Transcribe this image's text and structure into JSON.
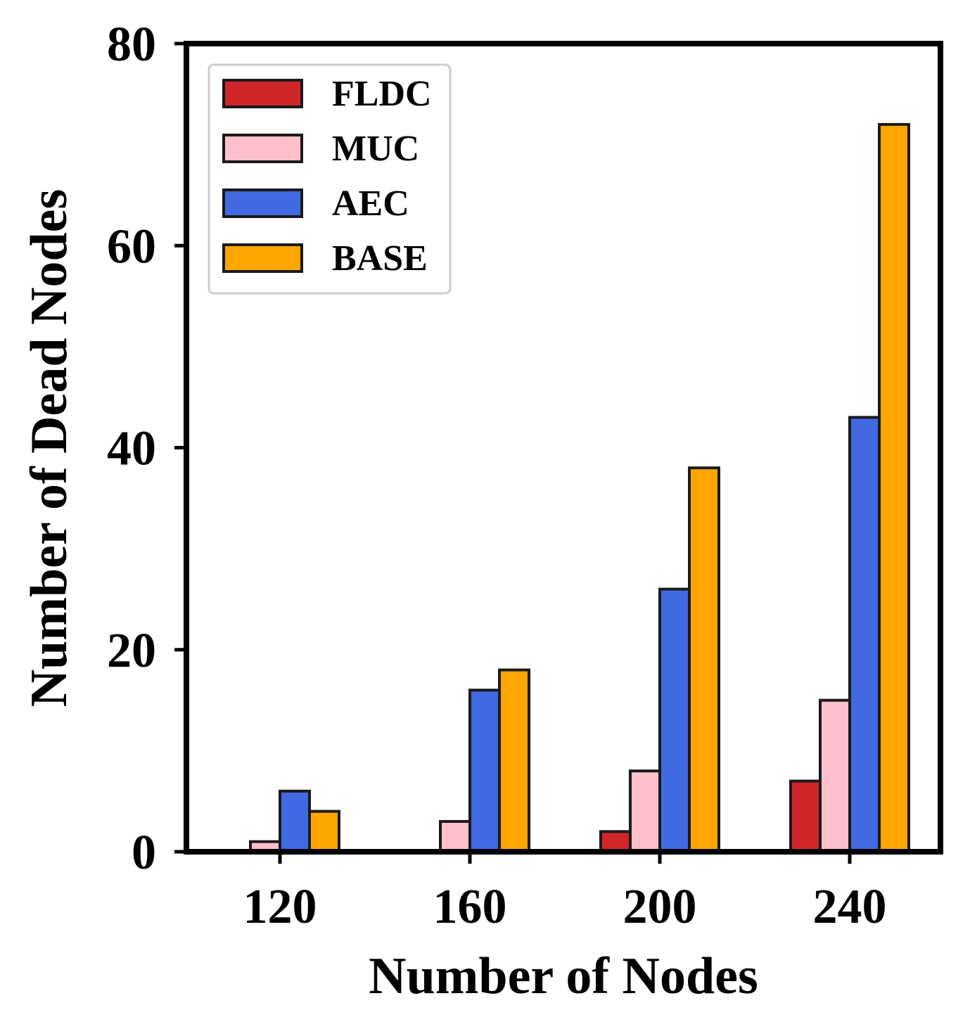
{
  "chart_data": {
    "type": "bar",
    "xlabel": "Number of Nodes",
    "ylabel": "Number of Dead Nodes",
    "categories": [
      "120",
      "160",
      "200",
      "240"
    ],
    "ylim": [
      0,
      80
    ],
    "yticks": [
      "0",
      "20",
      "40",
      "60",
      "80"
    ],
    "grid": false,
    "legend_position": "top-left",
    "series": [
      {
        "name": "FLDC",
        "color": "#d0262a",
        "values": [
          0,
          0,
          2,
          7
        ]
      },
      {
        "name": "MUC",
        "color": "#ffc0cb",
        "values": [
          1,
          3,
          8,
          15
        ]
      },
      {
        "name": "AEC",
        "color": "#4169e1",
        "values": [
          6,
          16,
          26,
          43
        ]
      },
      {
        "name": "BASE",
        "color": "#ffa500",
        "values": [
          4,
          18,
          38,
          72
        ]
      }
    ]
  }
}
